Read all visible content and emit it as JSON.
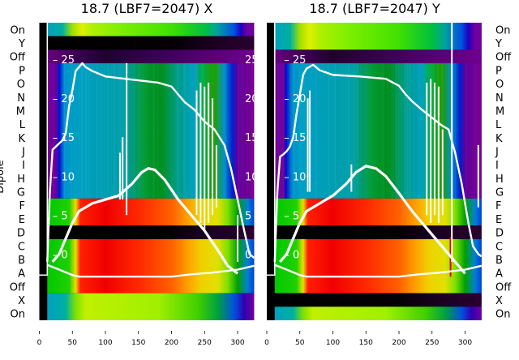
{
  "chart_data": {
    "type": "heatmap",
    "ylabel": "Dipole",
    "row_labels": [
      "On",
      "Y",
      "Off",
      "P",
      "O",
      "N",
      "M",
      "L",
      "K",
      "J",
      "I",
      "H",
      "G",
      "F",
      "E",
      "D",
      "C",
      "B",
      "A",
      "Off",
      "X",
      "On"
    ],
    "x_ticks": [
      0,
      50,
      100,
      150,
      200,
      250,
      300
    ],
    "xlim": [
      0,
      325
    ],
    "inner_y_ticks": [
      25,
      20,
      15,
      10,
      5,
      0
    ],
    "inner_ylim": [
      -8.5,
      29.7
    ],
    "palettes": {
      "black": [
        [
          12,
          "#000000"
        ],
        [
          200,
          "#050005"
        ],
        [
          260,
          "#1a0020"
        ],
        [
          325,
          "#2a0030"
        ]
      ],
      "offpurple": [
        [
          12,
          "#6a0080"
        ],
        [
          60,
          "#3a0050"
        ],
        [
          100,
          "#200030"
        ],
        [
          200,
          "#400060"
        ],
        [
          325,
          "#700090"
        ]
      ],
      "cyan": [
        [
          12,
          "#7a0099"
        ],
        [
          25,
          "#6a00a0"
        ],
        [
          30,
          "#0010d0"
        ],
        [
          38,
          "#0090d0"
        ],
        [
          50,
          "#00a0c8"
        ],
        [
          130,
          "#00a0a8"
        ],
        [
          160,
          "#009a30"
        ],
        [
          185,
          "#009020"
        ],
        [
          210,
          "#00a090"
        ],
        [
          235,
          "#00a0c0"
        ],
        [
          245,
          "#00b050"
        ],
        [
          265,
          "#20a000"
        ],
        [
          280,
          "#0090d0"
        ],
        [
          292,
          "#0020d0"
        ],
        [
          300,
          "#6000a0"
        ],
        [
          325,
          "#7a0090"
        ]
      ],
      "red": [
        [
          12,
          "#00c800"
        ],
        [
          45,
          "#20d000"
        ],
        [
          55,
          "#e8e000"
        ],
        [
          62,
          "#ff2000"
        ],
        [
          100,
          "#f00000"
        ],
        [
          150,
          "#ff2800"
        ],
        [
          200,
          "#ff6000"
        ],
        [
          225,
          "#ffa000"
        ],
        [
          245,
          "#f0d000"
        ],
        [
          270,
          "#e0e000"
        ],
        [
          285,
          "#80e000"
        ],
        [
          300,
          "#00a000"
        ],
        [
          315,
          "#0080d0"
        ],
        [
          325,
          "#0040e0"
        ]
      ],
      "top": [
        [
          12,
          "#00a0c0"
        ],
        [
          35,
          "#00b0a0"
        ],
        [
          50,
          "#a0e000"
        ],
        [
          65,
          "#e0f000"
        ],
        [
          80,
          "#b0f000"
        ],
        [
          120,
          "#80f000"
        ],
        [
          200,
          "#40e000"
        ],
        [
          250,
          "#00c040"
        ],
        [
          270,
          "#00a0a0"
        ],
        [
          295,
          "#0050e0"
        ],
        [
          305,
          "#2000c0"
        ],
        [
          315,
          "#7000a0"
        ],
        [
          325,
          "#7000a0"
        ]
      ],
      "bottom": [
        [
          12,
          "#00a0c0"
        ],
        [
          40,
          "#00b0a0"
        ],
        [
          55,
          "#80e000"
        ],
        [
          70,
          "#c0f000"
        ],
        [
          180,
          "#a0f000"
        ],
        [
          240,
          "#40d000"
        ],
        [
          270,
          "#00a040"
        ],
        [
          295,
          "#0050e0"
        ],
        [
          310,
          "#3000b0"
        ],
        [
          325,
          "#7000a0"
        ]
      ]
    },
    "panels": [
      {
        "title": "18.7 (LBF7=2047) X",
        "bands": [
          {
            "rows": [
              0,
              1
            ],
            "palette": "top"
          },
          {
            "rows": [
              1,
              2
            ],
            "palette": "black"
          },
          {
            "rows": [
              2,
              3
            ],
            "palette": "offpurple"
          },
          {
            "rows": [
              3,
              13
            ],
            "palette": "cyan"
          },
          {
            "rows": [
              13,
              15
            ],
            "palette": "red"
          },
          {
            "rows": [
              15,
              16
            ],
            "palette": "black"
          },
          {
            "rows": [
              16,
              20
            ],
            "palette": "red"
          },
          {
            "rows": [
              20,
              22
            ],
            "palette": "bottom"
          }
        ],
        "curves": [
          [
            [
              12,
              -1
            ],
            [
              16,
              8
            ],
            [
              20,
              13.4
            ],
            [
              25,
              13.8
            ],
            [
              30,
              14.2
            ],
            [
              35,
              14.6
            ],
            [
              40,
              15.5
            ],
            [
              45,
              19
            ],
            [
              50,
              21
            ],
            [
              55,
              23.5
            ],
            [
              60,
              24
            ],
            [
              65,
              24.5
            ],
            [
              70,
              24
            ],
            [
              80,
              23.5
            ],
            [
              100,
              22.8
            ],
            [
              140,
              22.4
            ],
            [
              180,
              22
            ],
            [
              200,
              21.5
            ],
            [
              210,
              20.5
            ],
            [
              220,
              19.5
            ],
            [
              235,
              18.5
            ],
            [
              250,
              17
            ],
            [
              265,
              16
            ],
            [
              280,
              14
            ],
            [
              290,
              11
            ],
            [
              300,
              7
            ],
            [
              310,
              3
            ],
            [
              318,
              0
            ],
            [
              325,
              -0.5
            ]
          ],
          [
            [
              20,
              -1
            ],
            [
              30,
              0
            ],
            [
              40,
              2
            ],
            [
              50,
              4
            ],
            [
              60,
              5.5
            ],
            [
              80,
              6.5
            ],
            [
              100,
              7
            ],
            [
              120,
              7.5
            ],
            [
              140,
              9
            ],
            [
              155,
              10.5
            ],
            [
              165,
              11
            ],
            [
              175,
              10.8
            ],
            [
              190,
              9.5
            ],
            [
              210,
              7
            ],
            [
              230,
              5
            ],
            [
              250,
              3
            ],
            [
              270,
              0.5
            ],
            [
              285,
              -1.5
            ],
            [
              300,
              -2.5
            ]
          ],
          [
            [
              12,
              -1.4
            ],
            [
              30,
              -2
            ],
            [
              50,
              -2.7
            ],
            [
              60,
              -2.9
            ],
            [
              200,
              -2.9
            ],
            [
              230,
              -2.6
            ],
            [
              260,
              -2.4
            ],
            [
              300,
              -2
            ],
            [
              325,
              -1.5
            ]
          ]
        ],
        "spikes": [
          [
            132,
            5,
            24.5
          ],
          [
            122,
            7,
            13
          ],
          [
            126,
            7,
            15
          ],
          [
            238,
            5,
            21
          ],
          [
            244,
            4,
            22
          ],
          [
            250,
            3,
            21.5
          ],
          [
            256,
            4,
            22
          ],
          [
            262,
            5,
            20
          ],
          [
            268,
            6,
            14
          ],
          [
            300,
            -1,
            5
          ]
        ],
        "marks": []
      },
      {
        "title": "18.7 (LBF7=2047) Y",
        "bands": [
          {
            "rows": [
              0,
              2
            ],
            "palette": "top"
          },
          {
            "rows": [
              2,
              3
            ],
            "palette": "offpurple"
          },
          {
            "rows": [
              3,
              13
            ],
            "palette": "cyan"
          },
          {
            "rows": [
              13,
              15
            ],
            "palette": "red"
          },
          {
            "rows": [
              15,
              16
            ],
            "palette": "black"
          },
          {
            "rows": [
              16,
              20
            ],
            "palette": "red"
          },
          {
            "rows": [
              20,
              21
            ],
            "palette": "black"
          },
          {
            "rows": [
              21,
              22
            ],
            "palette": "bottom"
          }
        ],
        "curves": [
          [
            [
              12,
              -1
            ],
            [
              16,
              8
            ],
            [
              20,
              12.5
            ],
            [
              25,
              12.8
            ],
            [
              30,
              13.2
            ],
            [
              35,
              13.8
            ],
            [
              40,
              15
            ],
            [
              45,
              18
            ],
            [
              50,
              20.5
            ],
            [
              55,
              23
            ],
            [
              60,
              23.8
            ],
            [
              70,
              24.3
            ],
            [
              80,
              23.6
            ],
            [
              100,
              23
            ],
            [
              140,
              22.8
            ],
            [
              180,
              22.5
            ],
            [
              200,
              21.6
            ],
            [
              210,
              20.5
            ],
            [
              220,
              19.6
            ],
            [
              235,
              18.5
            ],
            [
              250,
              17.5
            ],
            [
              265,
              16.5
            ],
            [
              275,
              16
            ],
            [
              285,
              13
            ],
            [
              295,
              9
            ],
            [
              305,
              4
            ],
            [
              312,
              1
            ],
            [
              320,
              0
            ],
            [
              325,
              -0.3
            ]
          ],
          [
            [
              20,
              -1
            ],
            [
              30,
              0
            ],
            [
              40,
              2
            ],
            [
              50,
              4
            ],
            [
              60,
              5.5
            ],
            [
              80,
              6.5
            ],
            [
              100,
              7.5
            ],
            [
              120,
              9
            ],
            [
              135,
              10.5
            ],
            [
              150,
              11.3
            ],
            [
              165,
              11
            ],
            [
              180,
              10
            ],
            [
              200,
              7.8
            ],
            [
              220,
              5.5
            ],
            [
              240,
              3.5
            ],
            [
              260,
              1.5
            ],
            [
              275,
              0
            ],
            [
              290,
              -1.5
            ],
            [
              300,
              -2.5
            ]
          ],
          [
            [
              12,
              -1.4
            ],
            [
              30,
              -2
            ],
            [
              50,
              -2.7
            ],
            [
              60,
              -2.9
            ],
            [
              200,
              -2.9
            ],
            [
              230,
              -2.6
            ],
            [
              260,
              -2.4
            ],
            [
              300,
              -2
            ],
            [
              325,
              -1.5
            ]
          ]
        ],
        "spikes": [
          [
            62,
            8,
            20
          ],
          [
            65,
            8,
            21
          ],
          [
            128,
            8,
            11.5
          ],
          [
            242,
            5,
            22
          ],
          [
            248,
            4,
            22.5
          ],
          [
            254,
            5,
            22
          ],
          [
            260,
            4,
            21.5
          ],
          [
            266,
            5,
            16
          ],
          [
            280,
            -1,
            29.7
          ],
          [
            320,
            6,
            14
          ]
        ],
        "marks": [
          [
            278,
            -2.9,
            2.2,
            "#e00000"
          ]
        ]
      }
    ]
  }
}
